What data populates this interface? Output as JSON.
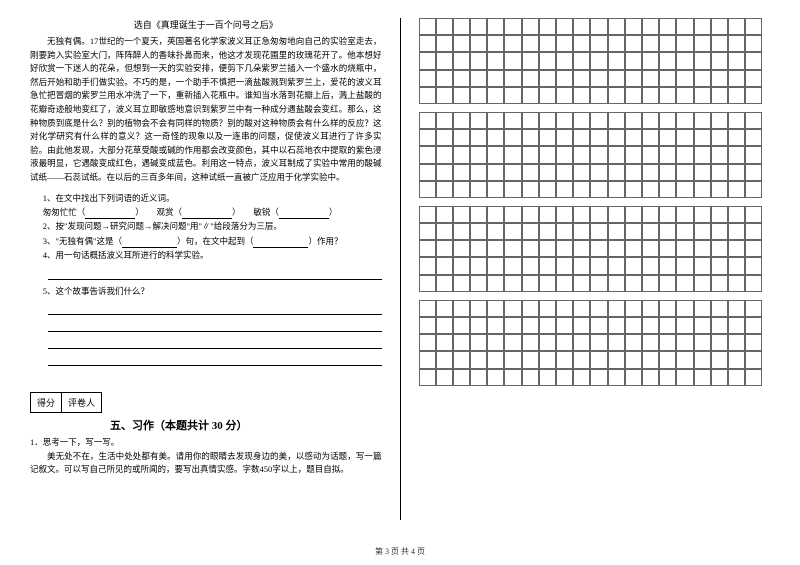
{
  "source": "选自《真理诞生于一百个问号之后》",
  "passage": "无独有偶。17世纪的一个夏天，英国著名化学家波义耳正急匆匆地向自己的实验室走去，刚要跨入实验室大门，阵阵醉人的香味扑鼻而来，他这才发现花圃里的玫瑰花开了。他本想好好欣赏一下迷人的花朵，但想到一天的实验安排，便剪下几朵紫罗兰插入一个盛水的烧瓶中，然后开始和助手们做实验。不巧的是，一个助手不慎把一滴盐酸溅到紫罗兰上，爱花的波义耳急忙把冒烟的紫罗兰用水冲洗了一下，重新插入花瓶中。谁知当水落到花瓣上后，溅上盐酸的花瓣奇迹般地变红了，波义耳立即敏感地意识到紫罗兰中有一种成分遇盐酸会变红。那么，这种物质到底是什么？别的植物会不会有同样的物质？别的酸对这种物质会有什么样的反应？这对化学研究有什么样的意义？这一奇怪的现象以及一连串的问题，促使波义耳进行了许多实验。由此他发现，大部分花草受酸或碱的作用都会改变颜色，其中以石蕊地衣中提取的紫色浸液最明显，它遇酸变成红色，遇碱变成蓝色。利用这一特点，波义耳制成了实验中常用的酸碱试纸——石蕊试纸。在以后的三百多年间，这种试纸一直被广泛应用于化学实验中。",
  "q1_label": "1、在文中找出下列词语的近义词。",
  "q1_words": {
    "a": "匆匆忙忙（",
    "a_end": "）",
    "b": "观赏（",
    "b_end": "）",
    "c": "敏锐（",
    "c_end": "）"
  },
  "q2": "2、按\"发现问题→研究问题→解决问题\"用\"∥\"给段落分为三层。",
  "q3_a": "3、\"无独有偶\"这是（",
  "q3_b": "）句，在文中起到（",
  "q3_c": "）作用？",
  "q4": "4、用一句话概括波义耳所进行的科学实验。",
  "q5": "5、这个故事告诉我们什么？",
  "score_a": "得分",
  "score_b": "评卷人",
  "section": "五、习作（本题共计 30 分）",
  "comp_label": "1．思考一下，写一写。",
  "comp_text": "美无处不在，生活中处处都有美。请用你的眼睛去发现身边的美，以感动为话题，写一篇记叙文。可以写自己所见的或所闻的，要写出真情实感。字数450字以上，题目自拟。",
  "footer": "第 3 页 共 4 页",
  "grid": {
    "blocks": 4,
    "rows_per_block": 5,
    "cols": 20
  }
}
